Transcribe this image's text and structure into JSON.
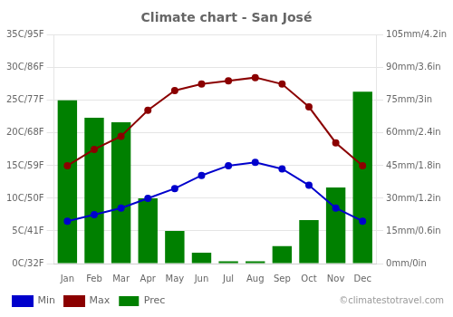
{
  "chart_data": {
    "type": "bar",
    "title": "Climate chart - San José",
    "categories": [
      "Jan",
      "Feb",
      "Mar",
      "Apr",
      "May",
      "Jun",
      "Jul",
      "Aug",
      "Sep",
      "Oct",
      "Nov",
      "Dec"
    ],
    "series": [
      {
        "name": "Prec",
        "type": "bar",
        "axis": "y2",
        "color": "#008000",
        "values": [
          75,
          67,
          65,
          30,
          15,
          5,
          1,
          1,
          8,
          20,
          35,
          79
        ]
      },
      {
        "name": "Min",
        "type": "line",
        "axis": "y",
        "color": "#0000CC",
        "marker": "circle",
        "line_style": "solid",
        "values": [
          6.5,
          7.5,
          8.5,
          10,
          11.5,
          13.5,
          15,
          15.5,
          14.5,
          12,
          8.5,
          6.5
        ]
      },
      {
        "name": "Max",
        "type": "line",
        "axis": "y",
        "color": "#8B0000",
        "marker": "circle",
        "line_style": "solid",
        "values": [
          15,
          17.5,
          19.5,
          23.5,
          26.5,
          27.5,
          28,
          28.5,
          27.5,
          24,
          18.5,
          15
        ]
      }
    ],
    "ylim": [
      0,
      35
    ],
    "yticks": [
      {
        "value": 0,
        "label": "0C/32F"
      },
      {
        "value": 5,
        "label": "5C/41F"
      },
      {
        "value": 10,
        "label": "10C/50F"
      },
      {
        "value": 15,
        "label": "15C/59F"
      },
      {
        "value": 20,
        "label": "20C/68F"
      },
      {
        "value": 25,
        "label": "25C/77F"
      },
      {
        "value": 30,
        "label": "30C/86F"
      },
      {
        "value": 35,
        "label": "35C/95F"
      }
    ],
    "y2lim": [
      0,
      105
    ],
    "y2ticks": [
      {
        "value": 0,
        "label": "0mm/0in"
      },
      {
        "value": 15,
        "label": "15mm/0.6in"
      },
      {
        "value": 30,
        "label": "30mm/1.2in"
      },
      {
        "value": 45,
        "label": "45mm/1.8in"
      },
      {
        "value": 60,
        "label": "60mm/2.4in"
      },
      {
        "value": 75,
        "label": "75mm/3in"
      },
      {
        "value": 90,
        "label": "90mm/3.6in"
      },
      {
        "value": 105,
        "label": "105mm/4.2in"
      }
    ],
    "grid": true,
    "legend": "bottom left",
    "annotations": [
      "©climatestotravel.com"
    ]
  }
}
